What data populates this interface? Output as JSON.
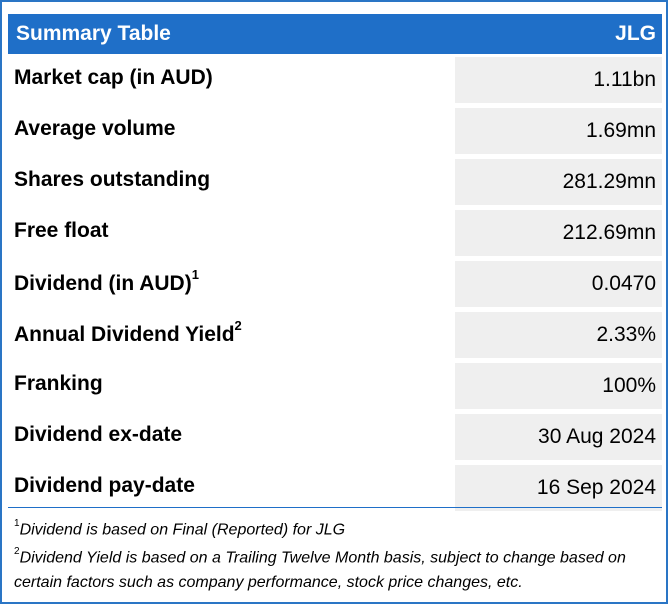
{
  "header": {
    "title": "Summary Table",
    "ticker": "JLG"
  },
  "rows": [
    {
      "label": "Market cap (in AUD)",
      "sup": "",
      "value": "1.11bn"
    },
    {
      "label": "Average volume",
      "sup": "",
      "value": "1.69mn"
    },
    {
      "label": "Shares outstanding",
      "sup": "",
      "value": "281.29mn"
    },
    {
      "label": "Free float",
      "sup": "",
      "value": "212.69mn"
    },
    {
      "label": "Dividend (in AUD)",
      "sup": "1",
      "value": "0.0470"
    },
    {
      "label": "Annual Dividend Yield",
      "sup": "2",
      "value": "2.33%"
    },
    {
      "label": "Franking",
      "sup": "",
      "value": "100%"
    },
    {
      "label": "Dividend ex-date",
      "sup": "",
      "value": "30 Aug 2024"
    },
    {
      "label": "Dividend pay-date",
      "sup": "",
      "value": "16 Sep 2024"
    }
  ],
  "footnotes": [
    {
      "marker": "1",
      "text": "Dividend is based on Final (Reported) for JLG"
    },
    {
      "marker": "2",
      "text": "Dividend Yield is based on a Trailing Twelve Month basis, subject to change based on certain factors such as company performance, stock price changes, etc."
    }
  ],
  "colors": {
    "header_bg": "#1f6fc8",
    "value_bg": "#efefef",
    "border": "#2a75c5"
  }
}
